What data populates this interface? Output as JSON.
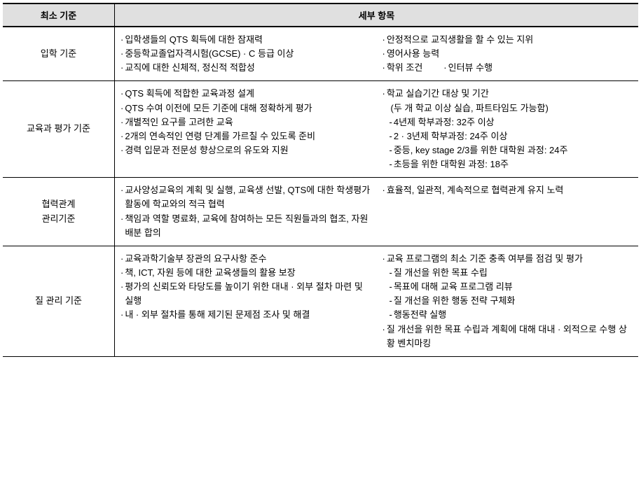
{
  "header": {
    "col1": "최소 기준",
    "col2": "세부 항목"
  },
  "rows": [
    {
      "label": "입학 기준",
      "left": [
        {
          "b": "·",
          "t": "입학생들의 QTS 획득에 대한 잠재력"
        },
        {
          "b": "·",
          "t": "중등학교졸업자격시험(GCSE) · C 등급 이상"
        },
        {
          "b": "·",
          "t": "교직에 대한 신체적, 정신적 적합성"
        }
      ],
      "right": [
        {
          "b": "·",
          "t": "안정적으로 교직생활을 할 수 있는 지위"
        },
        {
          "b": "·",
          "t": "영어사용 능력"
        },
        {
          "type": "pair",
          "a": {
            "b": "·",
            "t": "학위 조건"
          },
          "b2": {
            "b": "·",
            "t": "인터뷰 수행"
          }
        }
      ]
    },
    {
      "label": "교육과 평가 기준",
      "left": [
        {
          "b": "·",
          "t": "QTS 획득에 적합한 교육과정 설계"
        },
        {
          "b": "·",
          "t": "QTS 수여 이전에 모든 기준에 대해 정확하게 평가"
        },
        {
          "b": "·",
          "t": "개별적인 요구를 고려한 교육"
        },
        {
          "b": "·",
          "t": "2개의 연속적인 연령 단계를 가르칠 수 있도록 준비"
        },
        {
          "b": "·",
          "t": "경력 입문과 전문성 향상으로의 유도와 지원"
        }
      ],
      "right": [
        {
          "b": "·",
          "t": "학교 실습기간 대상 및 기간"
        },
        {
          "sub": true,
          "b": "",
          "t": "(두 개 학교 이상 실습, 파트타임도 가능함)"
        },
        {
          "sub": true,
          "b": "-",
          "t": " 4년제 학부과정: 32주 이상"
        },
        {
          "sub": true,
          "b": "-",
          "t": " 2 · 3년제 학부과정: 24주 이상"
        },
        {
          "sub": true,
          "b": "-",
          "t": " 중등, key stage 2/3를 위한 대학원 과정: 24주"
        },
        {
          "sub": true,
          "b": "-",
          "t": " 초등을 위한 대학원 과정: 18주"
        }
      ]
    },
    {
      "label": "협력관계\n관리기준",
      "left": [
        {
          "b": "·",
          "t": "교사양성교육의 계획 및 실행, 교육생 선발, QTS에 대한 학생평가 활동에 학교와의 적극 협력"
        },
        {
          "b": "·",
          "t": "책임과 역할 명료화, 교육에 참여하는 모든 직원들과의 협조, 자원 배분 합의"
        }
      ],
      "right": [
        {
          "b": "·",
          "t": "효율적, 일관적, 계속적으로 협력관계 유지 노력"
        }
      ]
    },
    {
      "label": "질 관리 기준",
      "left": [
        {
          "b": "·",
          "t": "교육과학기술부 장관의 요구사항 준수"
        },
        {
          "b": "·",
          "t": "책, ICT, 자원 등에 대한 교육생들의 활용 보장"
        },
        {
          "b": "·",
          "t": "평가의 신뢰도와 타당도를 높이기 위한 대내 · 외부 절차 마련 및 실행"
        },
        {
          "b": "·",
          "t": "내 · 외부 절차를 통해 제기된 문제점 조사 및 해결"
        }
      ],
      "right": [
        {
          "b": "·",
          "t": "교육 프로그램의 최소 기준 충족 여부를 점검 및 평가"
        },
        {
          "sub": true,
          "b": "-",
          "t": " 질 개선을 위한 목표 수립"
        },
        {
          "sub": true,
          "b": "-",
          "t": " 목표에 대해 교육 프로그램 리뷰"
        },
        {
          "sub": true,
          "b": "-",
          "t": " 질 개선을 위한 행동 전략 구체화"
        },
        {
          "sub": true,
          "b": "-",
          "t": " 행동전략 실행"
        },
        {
          "b": "·",
          "t": "질 개선을 위한 목표 수립과 계획에 대해 대내 · 외적으로 수행 상황 벤치마킹"
        }
      ]
    }
  ]
}
